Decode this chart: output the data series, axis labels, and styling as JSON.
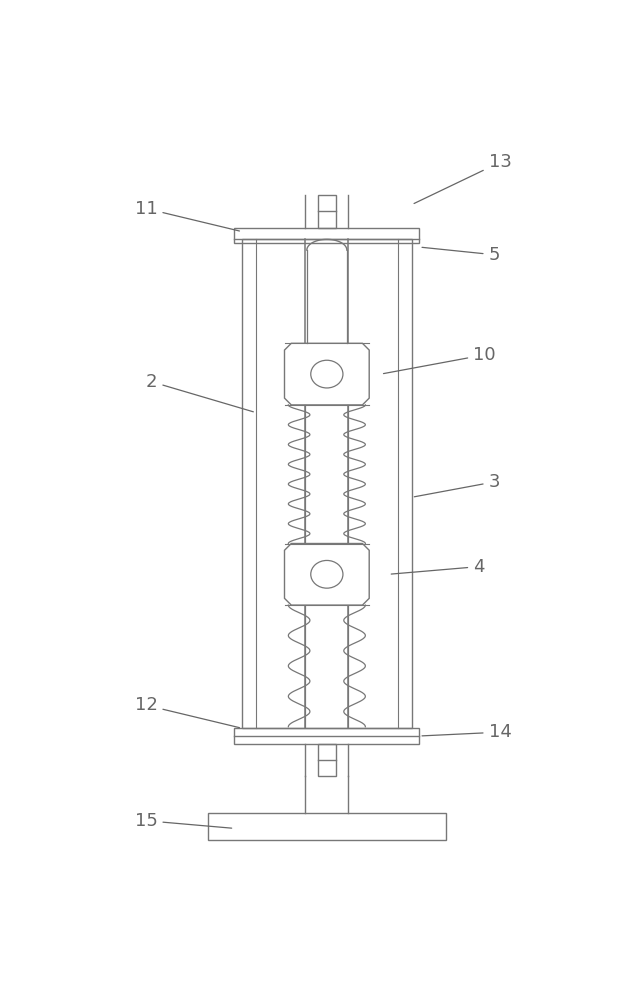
{
  "bg_color": "#ffffff",
  "line_color": "#777777",
  "line_width": 1.0,
  "fig_width": 6.31,
  "fig_height": 10.0,
  "label_color": "#666666",
  "label_fontsize": 13
}
